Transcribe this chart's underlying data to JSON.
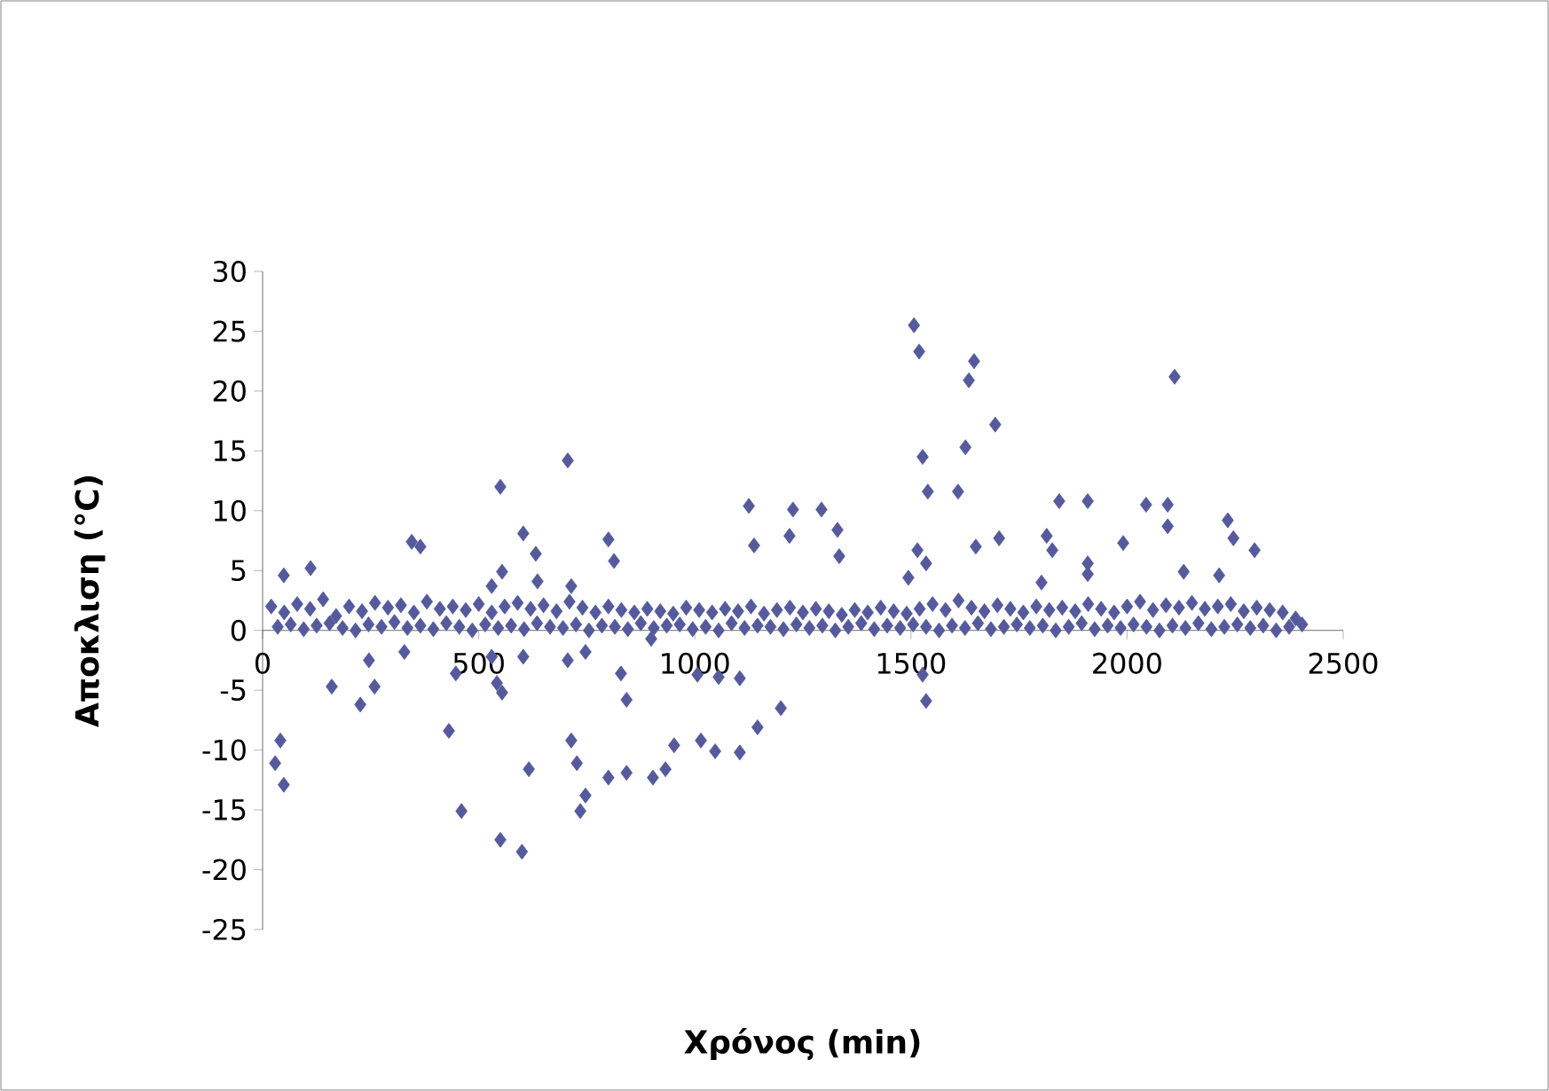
{
  "chart_data": {
    "type": "scatter",
    "xlabel": "Χρόνος (min)",
    "ylabel": "Αποκλιση (°C)",
    "xlim": [
      0,
      2500
    ],
    "ylim": [
      -25,
      30
    ],
    "xticks": [
      0,
      500,
      1000,
      1500,
      2000,
      2500
    ],
    "yticks": [
      -25,
      -20,
      -15,
      -10,
      -5,
      0,
      5,
      10,
      15,
      20,
      25,
      30
    ],
    "marker": "diamond",
    "series": [
      {
        "color": "#555a9c",
        "x": [
          20,
          50,
          80,
          110,
          140,
          170,
          200,
          230,
          260,
          290,
          320,
          350,
          380,
          410,
          440,
          470,
          500,
          530,
          560,
          590,
          620,
          650,
          680,
          710,
          740,
          770,
          800,
          830,
          860,
          890,
          920,
          950,
          980,
          1010,
          1040,
          1070,
          1100,
          1130,
          1160,
          1190,
          1220,
          1250,
          1280,
          1310,
          1340,
          1370,
          1400,
          1430,
          1460,
          1490,
          1520,
          1550,
          1580,
          1610,
          1640,
          1670,
          1700,
          1730,
          1760,
          1790,
          1820,
          1850,
          1880,
          1910,
          1940,
          1970,
          2000,
          2030,
          2060,
          2090,
          2120,
          2150,
          2180,
          2210,
          2240,
          2270,
          2300,
          2330,
          2360,
          2390,
          35,
          65,
          95,
          125,
          155,
          185,
          215,
          245,
          275,
          305,
          335,
          365,
          395,
          425,
          455,
          485,
          515,
          545,
          575,
          605,
          635,
          665,
          695,
          725,
          755,
          785,
          815,
          845,
          875,
          905,
          935,
          965,
          995,
          1025,
          1055,
          1085,
          1115,
          1145,
          1175,
          1205,
          1235,
          1265,
          1295,
          1325,
          1355,
          1385,
          1415,
          1445,
          1475,
          1505,
          1535,
          1565,
          1595,
          1625,
          1655,
          1685,
          1715,
          1745,
          1775,
          1805,
          1835,
          1865,
          1895,
          1925,
          1955,
          1985,
          2015,
          2045,
          2075,
          2105,
          2135,
          2165,
          2195,
          2225,
          2255,
          2285,
          2315,
          2345,
          2375,
          2405,
          1507,
          1519,
          1646,
          1634,
          1695,
          2110,
          1527,
          1626,
          706,
          550,
          1539,
          1609,
          1843,
          1909,
          2044,
          2094,
          2094,
          2233,
          2246,
          2295,
          1991,
          1814,
          1827,
          1704,
          1650,
          1909,
          1909,
          2131,
          2213,
          1802,
          1515,
          1494,
          1535,
          1227,
          1219,
          1293,
          1330,
          1334,
          1125,
          1137,
          345,
          365,
          603,
          632,
          636,
          800,
          813,
          554,
          530,
          49,
          111,
          714,
          160,
          226,
          259,
          246,
          328,
          447,
          431,
          460,
          530,
          542,
          554,
          603,
          616,
          706,
          714,
          727,
          747,
          735,
          747,
          829,
          842,
          800,
          842,
          903,
          932,
          952,
          1006,
          1055,
          1104,
          1014,
          1047,
          1104,
          1145,
          1199,
          41,
          49,
          29,
          899,
          1527,
          1535,
          550,
          600
        ],
        "values": [
          2.0,
          1.5,
          2.2,
          1.8,
          2.6,
          1.2,
          2.0,
          1.6,
          2.3,
          1.9,
          2.1,
          1.5,
          2.4,
          1.8,
          2.0,
          1.7,
          2.2,
          1.5,
          2.0,
          2.3,
          1.8,
          2.1,
          1.6,
          2.4,
          1.9,
          1.5,
          2.0,
          1.7,
          1.5,
          1.8,
          1.6,
          1.4,
          1.9,
          1.7,
          1.5,
          1.8,
          1.6,
          2.0,
          1.4,
          1.7,
          1.9,
          1.5,
          1.8,
          1.6,
          1.3,
          1.7,
          1.5,
          1.9,
          1.6,
          1.4,
          1.8,
          2.2,
          1.7,
          2.5,
          1.9,
          1.6,
          2.1,
          1.8,
          1.5,
          2.0,
          1.7,
          1.9,
          1.6,
          2.2,
          1.8,
          1.5,
          2.0,
          2.4,
          1.7,
          2.1,
          1.9,
          2.3,
          1.8,
          2.0,
          2.2,
          1.6,
          1.9,
          1.7,
          1.5,
          1.0,
          0.3,
          0.5,
          0.1,
          0.4,
          0.6,
          0.2,
          0.0,
          0.5,
          0.3,
          0.7,
          0.2,
          0.4,
          0.1,
          0.6,
          0.3,
          0.0,
          0.5,
          0.2,
          0.4,
          0.1,
          0.6,
          0.3,
          0.2,
          0.5,
          0.0,
          0.4,
          0.3,
          0.1,
          0.6,
          0.2,
          0.4,
          0.5,
          0.1,
          0.3,
          0.0,
          0.6,
          0.2,
          0.4,
          0.3,
          0.1,
          0.5,
          0.2,
          0.4,
          0.0,
          0.3,
          0.6,
          0.1,
          0.4,
          0.2,
          0.5,
          0.3,
          0.0,
          0.4,
          0.2,
          0.6,
          0.1,
          0.3,
          0.5,
          0.2,
          0.4,
          0.0,
          0.3,
          0.6,
          0.1,
          0.4,
          0.2,
          0.5,
          0.3,
          0.0,
          0.4,
          0.2,
          0.6,
          0.1,
          0.3,
          0.5,
          0.2,
          0.4,
          0.0,
          0.3,
          0.5,
          25.5,
          23.3,
          22.5,
          20.9,
          17.2,
          21.2,
          14.5,
          15.3,
          14.2,
          12.0,
          11.6,
          11.6,
          10.8,
          10.8,
          10.5,
          10.5,
          8.7,
          9.2,
          7.7,
          6.7,
          7.3,
          7.9,
          6.7,
          7.7,
          7.0,
          5.6,
          4.7,
          4.9,
          4.6,
          4.0,
          6.7,
          4.4,
          5.6,
          10.1,
          7.9,
          10.1,
          8.4,
          6.2,
          10.4,
          7.1,
          7.4,
          7.0,
          8.1,
          6.4,
          4.1,
          7.6,
          5.8,
          4.9,
          3.7,
          4.6,
          5.2,
          3.7,
          -4.7,
          -6.2,
          -4.7,
          -2.5,
          -1.8,
          -3.6,
          -8.4,
          -15.1,
          -2.2,
          -4.4,
          -5.2,
          -2.2,
          -11.6,
          -2.5,
          -9.2,
          -11.1,
          -13.8,
          -15.1,
          -1.8,
          -3.6,
          -5.8,
          -12.3,
          -11.9,
          -12.3,
          -11.6,
          -9.6,
          -3.7,
          -3.9,
          -4.0,
          -9.2,
          -10.1,
          -10.2,
          -8.1,
          -6.5,
          -9.2,
          -12.9,
          -11.1,
          -0.7,
          -3.7,
          -5.9,
          -17.5,
          -18.5
        ]
      }
    ]
  }
}
